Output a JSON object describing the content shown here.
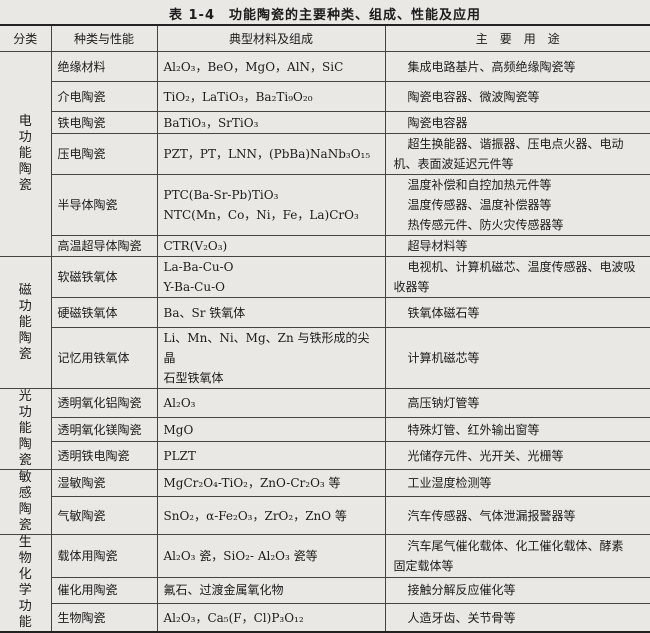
{
  "title": "表 1-4　功能陶瓷的主要种类、组成、性能及应用",
  "headers": {
    "category": "分类",
    "type": "种类与性能",
    "material": "典型材料及组成",
    "use": "主　要　用　途"
  },
  "groups": [
    {
      "category": "电功能陶瓷",
      "rows": [
        {
          "type": "绝缘材料",
          "material": [
            "Al₂O₃，BeO，MgO，AlN，SiC"
          ],
          "use": [
            "集成电路基片、高频绝缘陶瓷等"
          ]
        },
        {
          "type": "介电陶瓷",
          "material": [
            "TiO₂，LaTiO₃，Ba₂Ti₉O₂₀"
          ],
          "use": [
            "陶瓷电容器、微波陶瓷等"
          ]
        },
        {
          "type": "铁电陶瓷",
          "material": [
            "BaTiO₃，SrTiO₃"
          ],
          "use": [
            "陶瓷电容器"
          ]
        },
        {
          "type": "压电陶瓷",
          "material": [
            "PZT，PT，LNN，(PbBa)NaNb₃O₁₅"
          ],
          "use": [
            "超生换能器、谐振器、压电点火器、电动",
            "机、表面波延迟元件等"
          ]
        },
        {
          "type": "半导体陶瓷",
          "material": [
            "PTC(Ba-Sr-Pb)TiO₃",
            "NTC(Mn，Co，Ni，Fe，La)CrO₃"
          ],
          "use": [
            "温度补偿和自控加热元件等",
            "温度传感器、温度补偿器等",
            "热传感元件、防火灾传感器等"
          ]
        },
        {
          "type": "高温超导体陶瓷",
          "material": [
            "CTR(V₂O₃)"
          ],
          "use": [
            "超导材料等"
          ]
        }
      ]
    },
    {
      "category": "磁功能陶瓷",
      "rows": [
        {
          "type": "软磁铁氧体",
          "material": [
            "La-Ba-Cu-O",
            "Y-Ba-Cu-O"
          ],
          "use": [
            "电视机、计算机磁芯、温度传感器、电波吸",
            "收器等"
          ]
        },
        {
          "type": "硬磁铁氧体",
          "material": [
            "Ba、Sr 铁氧体"
          ],
          "use": [
            "铁氧体磁石等"
          ]
        },
        {
          "type": "记忆用铁氧体",
          "material": [
            "Li、Mn、Ni、Mg、Zn 与铁形成的尖晶",
            "石型铁氧体"
          ],
          "use": [
            "计算机磁芯等"
          ]
        }
      ]
    },
    {
      "category": "光功能陶瓷",
      "rows": [
        {
          "type": "透明氧化铝陶瓷",
          "material": [
            "Al₂O₃"
          ],
          "use": [
            "高压钠灯管等"
          ]
        },
        {
          "type": "透明氧化镁陶瓷",
          "material": [
            "MgO"
          ],
          "use": [
            "特殊灯管、红外输出窗等"
          ]
        },
        {
          "type": "透明铁电陶瓷",
          "material": [
            "PLZT"
          ],
          "use": [
            "光储存元件、光开关、光栅等"
          ]
        }
      ]
    },
    {
      "category": "敏感陶瓷",
      "rows": [
        {
          "type": "湿敏陶瓷",
          "material": [
            "MgCr₂O₄-TiO₂，ZnO-Cr₂O₃ 等"
          ],
          "use": [
            "工业湿度检测等"
          ]
        },
        {
          "type": "气敏陶瓷",
          "material": [
            "SnO₂，α-Fe₂O₃，ZrO₂，ZnO 等"
          ],
          "use": [
            "汽车传感器、气体泄漏报警器等"
          ]
        }
      ]
    },
    {
      "category": "生物化学功能",
      "rows": [
        {
          "type": "载体用陶瓷",
          "material": [
            "Al₂O₃ 瓷，SiO₂- Al₂O₃ 瓷等"
          ],
          "use": [
            "汽车尾气催化载体、化工催化载体、酵素",
            "固定载体等"
          ]
        },
        {
          "type": "催化用陶瓷",
          "material": [
            "氟石、过渡金属氧化物"
          ],
          "use": [
            "接触分解反应催化等"
          ]
        },
        {
          "type": "生物陶瓷",
          "material": [
            "Al₂O₃，Ca₅(F，Cl)P₃O₁₂"
          ],
          "use": [
            "人造牙齿、关节骨等"
          ]
        }
      ]
    }
  ]
}
